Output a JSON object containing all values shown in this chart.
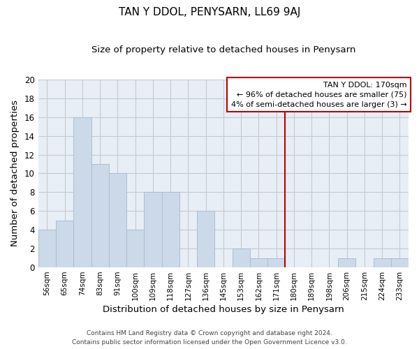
{
  "title": "TAN Y DDOL, PENYSARN, LL69 9AJ",
  "subtitle": "Size of property relative to detached houses in Penysarn",
  "xlabel": "Distribution of detached houses by size in Penysarn",
  "ylabel": "Number of detached properties",
  "footer_line1": "Contains HM Land Registry data © Crown copyright and database right 2024.",
  "footer_line2": "Contains public sector information licensed under the Open Government Licence v3.0.",
  "categories": [
    "56sqm",
    "65sqm",
    "74sqm",
    "83sqm",
    "91sqm",
    "100sqm",
    "109sqm",
    "118sqm",
    "127sqm",
    "136sqm",
    "145sqm",
    "153sqm",
    "162sqm",
    "171sqm",
    "180sqm",
    "189sqm",
    "198sqm",
    "206sqm",
    "215sqm",
    "224sqm",
    "233sqm"
  ],
  "values": [
    4,
    5,
    16,
    11,
    10,
    4,
    8,
    8,
    0,
    6,
    0,
    2,
    1,
    1,
    0,
    0,
    0,
    1,
    0,
    1,
    1
  ],
  "bar_color": "#ccd9e8",
  "bar_edge_color": "#a8bfd4",
  "reference_line_index": 13,
  "reference_line_color": "#bb0000",
  "ylim": [
    0,
    20
  ],
  "yticks": [
    0,
    2,
    4,
    6,
    8,
    10,
    12,
    14,
    16,
    18,
    20
  ],
  "annotation_title": "TAN Y DDOL: 170sqm",
  "annotation_line1": "← 96% of detached houses are smaller (75)",
  "annotation_line2": "4% of semi-detached houses are larger (3) →",
  "grid_color": "#c8c8d0",
  "bg_color": "#e8eef6"
}
